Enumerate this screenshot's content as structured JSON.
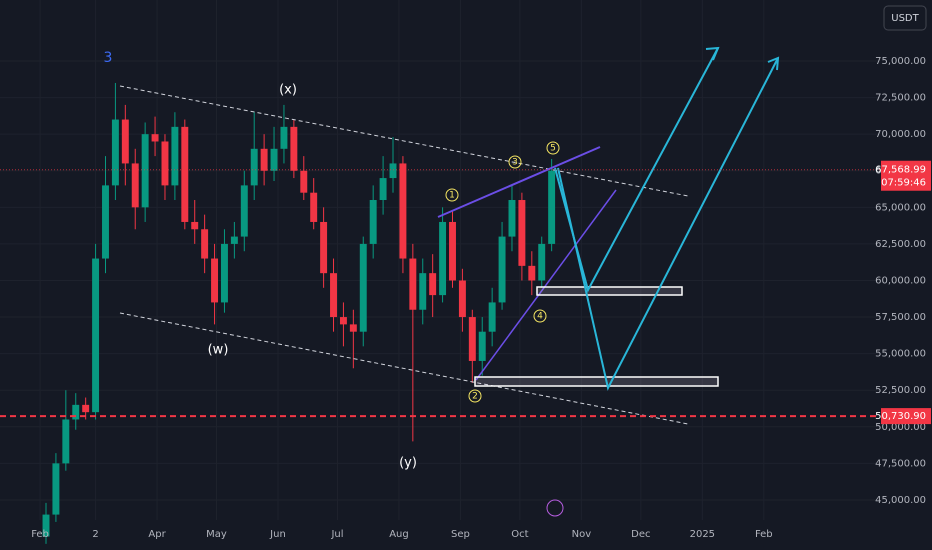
{
  "chart_data": {
    "type": "candlestick",
    "currency": "USDT",
    "x": [
      35,
      40,
      45,
      50,
      55,
      60,
      65,
      70,
      75,
      80,
      85,
      90,
      95,
      100,
      105,
      110,
      115,
      120,
      125,
      130,
      135,
      140,
      145,
      150,
      155,
      160,
      165,
      170,
      175,
      180,
      185,
      190,
      195,
      200,
      205,
      210,
      215,
      220,
      225,
      230,
      235,
      240,
      245,
      250,
      255,
      260,
      265,
      270,
      275,
      280,
      285,
      290
    ],
    "open": [
      42500,
      44000,
      47500,
      50500,
      51500,
      51000,
      61500,
      66500,
      71000,
      68000,
      65000,
      70000,
      69500,
      66500,
      70500,
      64000,
      63500,
      61500,
      58500,
      62500,
      63000,
      66500,
      69000,
      67500,
      69000,
      70500,
      67500,
      66000,
      64000,
      60500,
      57500,
      57000,
      56500,
      62500,
      65500,
      67000,
      68000,
      61500,
      58000,
      60500,
      59000,
      64000,
      60000,
      57500,
      54500,
      56500,
      58500,
      63000,
      65500,
      61000,
      60000,
      62500
    ],
    "high": [
      44800,
      48200,
      52500,
      52300,
      52000,
      62500,
      68500,
      73500,
      72000,
      69000,
      70800,
      71200,
      70000,
      71500,
      71000,
      65500,
      64500,
      62500,
      63500,
      64000,
      67500,
      71500,
      70000,
      70500,
      72000,
      71000,
      68500,
      67000,
      65000,
      61500,
      58500,
      58000,
      63000,
      66500,
      68500,
      69800,
      68500,
      62500,
      61500,
      61800,
      65000,
      64800,
      60800,
      58000,
      57500,
      59500,
      64000,
      66500,
      66000,
      62000,
      63000,
      68300
    ],
    "low": [
      42000,
      43500,
      47000,
      49800,
      50500,
      50500,
      60500,
      65500,
      66500,
      63500,
      64000,
      68500,
      65500,
      65500,
      63500,
      62500,
      60500,
      57000,
      57800,
      61500,
      62000,
      65500,
      66500,
      66800,
      68000,
      67000,
      65500,
      63500,
      59500,
      56500,
      55500,
      54000,
      55500,
      61500,
      64500,
      66000,
      60500,
      49000,
      57000,
      57500,
      58500,
      59500,
      56500,
      53000,
      53500,
      55500,
      58000,
      62000,
      60000,
      59000,
      59500,
      62000
    ],
    "close": [
      44000,
      47500,
      50500,
      51500,
      51000,
      61500,
      66500,
      71000,
      68000,
      65000,
      70000,
      69500,
      66500,
      70500,
      64000,
      63500,
      61500,
      58500,
      62500,
      63000,
      66500,
      69000,
      67500,
      69000,
      70500,
      67500,
      66000,
      64000,
      60500,
      57500,
      57000,
      56500,
      62500,
      65500,
      67000,
      68000,
      61500,
      58000,
      60500,
      59000,
      64000,
      60000,
      57500,
      54500,
      56500,
      58500,
      63000,
      65500,
      61000,
      60000,
      62500,
      67500
    ],
    "up_color": "#089981",
    "down_color": "#f23645",
    "xlim": [
      11.8,
      455.6
    ],
    "xticks": [
      {
        "value": 32,
        "label": "Feb"
      },
      {
        "value": 60,
        "label": "2"
      },
      {
        "value": 91,
        "label": "Apr"
      },
      {
        "value": 121,
        "label": "May"
      },
      {
        "value": 152,
        "label": "Jun"
      },
      {
        "value": 182,
        "label": "Jul"
      },
      {
        "value": 213,
        "label": "Aug"
      },
      {
        "value": 244,
        "label": "Sep"
      },
      {
        "value": 274,
        "label": "Oct"
      },
      {
        "value": 305,
        "label": "Nov"
      },
      {
        "value": 335,
        "label": "Dec"
      },
      {
        "value": 366,
        "label": "2025"
      },
      {
        "value": 397,
        "label": "Feb"
      }
    ],
    "ylim": [
      43630,
      79170
    ],
    "yticks": [
      {
        "value": 75000,
        "label": "75,000.00"
      },
      {
        "value": 72500,
        "label": "72,500.00"
      },
      {
        "value": 70000,
        "label": "70,000.00"
      },
      {
        "value": 67500,
        "label": "67,500.00"
      },
      {
        "value": 65000,
        "label": "65,000.00"
      },
      {
        "value": 62500,
        "label": "62,500.00"
      },
      {
        "value": 60000,
        "label": "60,000.00"
      },
      {
        "value": 57500,
        "label": "57,500.00"
      },
      {
        "value": 55000,
        "label": "55,000.00"
      },
      {
        "value": 52500,
        "label": "52,500.00"
      },
      {
        "value": 50000,
        "label": "50,000.00"
      },
      {
        "value": 47500,
        "label": "47,500.00"
      },
      {
        "value": 45000,
        "label": "45,000.00"
      }
    ],
    "grid": true,
    "last_price": {
      "value": 67568.99,
      "label": "67,568.99"
    },
    "countdown": "07:59:46",
    "support_level": {
      "value": 50730.9,
      "label": "50,730.90"
    },
    "annotations": [
      "3",
      "(x)",
      "(w)",
      "(y)",
      "1",
      "2",
      "3",
      "4",
      "5"
    ]
  }
}
